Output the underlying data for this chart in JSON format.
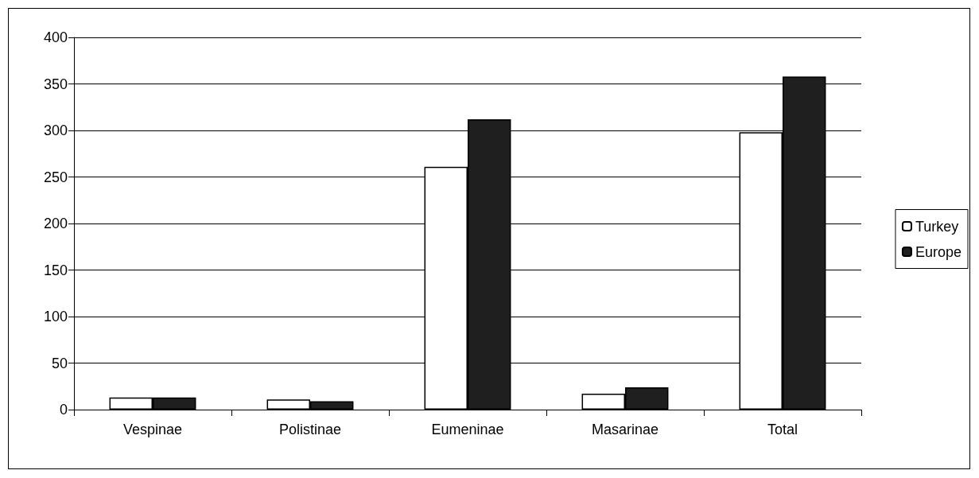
{
  "chart_data": {
    "type": "bar",
    "categories": [
      "Vespinae",
      "Polistinae",
      "Eumeninae",
      "Masarinae",
      "Total"
    ],
    "series": [
      {
        "name": "Turkey",
        "color": "#ffffff",
        "values": [
          13,
          11,
          261,
          17,
          298
        ]
      },
      {
        "name": "Europe",
        "color": "#1f1f1f",
        "values": [
          13,
          9,
          312,
          24,
          358
        ]
      }
    ],
    "ylim": [
      0,
      400
    ],
    "yticks": [
      0,
      50,
      100,
      150,
      200,
      250,
      300,
      350,
      400
    ],
    "grid": "y",
    "legend": "right"
  }
}
